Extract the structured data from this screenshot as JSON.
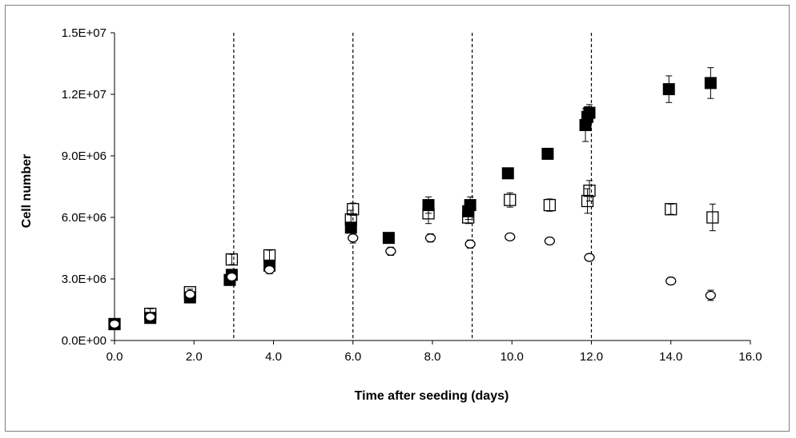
{
  "chart_data": {
    "type": "scatter",
    "title": "",
    "xlabel": "Time after seeding (days)",
    "ylabel": "Cell number",
    "xlim": [
      0,
      16
    ],
    "ylim": [
      0,
      15000000
    ],
    "x_ticks": [
      "0.0",
      "2.0",
      "4.0",
      "6.0",
      "8.0",
      "10.0",
      "12.0",
      "14.0",
      "16.0"
    ],
    "y_ticks": [
      "0.0E+00",
      "3.0E+06",
      "6.0E+06",
      "9.0E+06",
      "1.2E+07",
      "1.5E+07"
    ],
    "grid": false,
    "legend": "none",
    "vertical_reference_lines_x": [
      3,
      6,
      9,
      12
    ],
    "series": [
      {
        "marker": "filled-square",
        "color": "#000000",
        "points": [
          {
            "x": 0.0,
            "y": 800000,
            "err": 150000
          },
          {
            "x": 0.9,
            "y": 1100000,
            "err": 200000
          },
          {
            "x": 1.9,
            "y": 2100000,
            "err": 150000
          },
          {
            "x": 2.9,
            "y": 2950000,
            "err": 200000
          },
          {
            "x": 2.95,
            "y": 3200000,
            "err": 200000
          },
          {
            "x": 3.9,
            "y": 3650000,
            "err": 250000
          },
          {
            "x": 5.95,
            "y": 5500000,
            "err": 250000
          },
          {
            "x": 6.9,
            "y": 5000000,
            "err": 150000
          },
          {
            "x": 7.9,
            "y": 6600000,
            "err": 400000
          },
          {
            "x": 8.9,
            "y": 6300000,
            "err": 400000
          },
          {
            "x": 8.95,
            "y": 6600000,
            "err": 400000
          },
          {
            "x": 9.9,
            "y": 8150000,
            "err": 200000
          },
          {
            "x": 10.9,
            "y": 9100000,
            "err": 200000
          },
          {
            "x": 11.85,
            "y": 10500000,
            "err": 800000
          },
          {
            "x": 11.9,
            "y": 10900000,
            "err": 500000
          },
          {
            "x": 11.95,
            "y": 11100000,
            "err": 400000
          },
          {
            "x": 13.95,
            "y": 12250000,
            "err": 650000
          },
          {
            "x": 15.0,
            "y": 12550000,
            "err": 750000
          }
        ]
      },
      {
        "marker": "open-square",
        "color": "#000000",
        "points": [
          {
            "x": 0.0,
            "y": 800000,
            "err": 150000
          },
          {
            "x": 0.9,
            "y": 1300000,
            "err": 250000
          },
          {
            "x": 1.9,
            "y": 2350000,
            "err": 150000
          },
          {
            "x": 2.95,
            "y": 3950000,
            "err": 250000
          },
          {
            "x": 3.9,
            "y": 4150000,
            "err": 250000
          },
          {
            "x": 5.95,
            "y": 5900000,
            "err": 450000
          },
          {
            "x": 6.0,
            "y": 6400000,
            "err": 300000
          },
          {
            "x": 7.9,
            "y": 6200000,
            "err": 500000
          },
          {
            "x": 8.9,
            "y": 6000000,
            "err": 300000
          },
          {
            "x": 9.95,
            "y": 6850000,
            "err": 350000
          },
          {
            "x": 10.95,
            "y": 6600000,
            "err": 300000
          },
          {
            "x": 11.9,
            "y": 6800000,
            "err": 600000
          },
          {
            "x": 11.95,
            "y": 7300000,
            "err": 500000
          },
          {
            "x": 14.0,
            "y": 6400000,
            "err": 250000
          },
          {
            "x": 15.05,
            "y": 6000000,
            "err": 650000
          }
        ]
      },
      {
        "marker": "open-circle",
        "color": "#000000",
        "points": [
          {
            "x": 0.0,
            "y": 800000,
            "err": 120000
          },
          {
            "x": 0.9,
            "y": 1150000,
            "err": 150000
          },
          {
            "x": 1.9,
            "y": 2250000,
            "err": 150000
          },
          {
            "x": 2.95,
            "y": 3100000,
            "err": 200000
          },
          {
            "x": 3.9,
            "y": 3450000,
            "err": 200000
          },
          {
            "x": 6.0,
            "y": 5000000,
            "err": 250000
          },
          {
            "x": 6.95,
            "y": 4350000,
            "err": 200000
          },
          {
            "x": 7.95,
            "y": 5000000,
            "err": 200000
          },
          {
            "x": 8.95,
            "y": 4700000,
            "err": 200000
          },
          {
            "x": 9.95,
            "y": 5050000,
            "err": 150000
          },
          {
            "x": 10.95,
            "y": 4850000,
            "err": 150000
          },
          {
            "x": 11.95,
            "y": 4050000,
            "err": 150000
          },
          {
            "x": 14.0,
            "y": 2900000,
            "err": 150000
          },
          {
            "x": 15.0,
            "y": 2200000,
            "err": 250000
          }
        ]
      }
    ]
  }
}
